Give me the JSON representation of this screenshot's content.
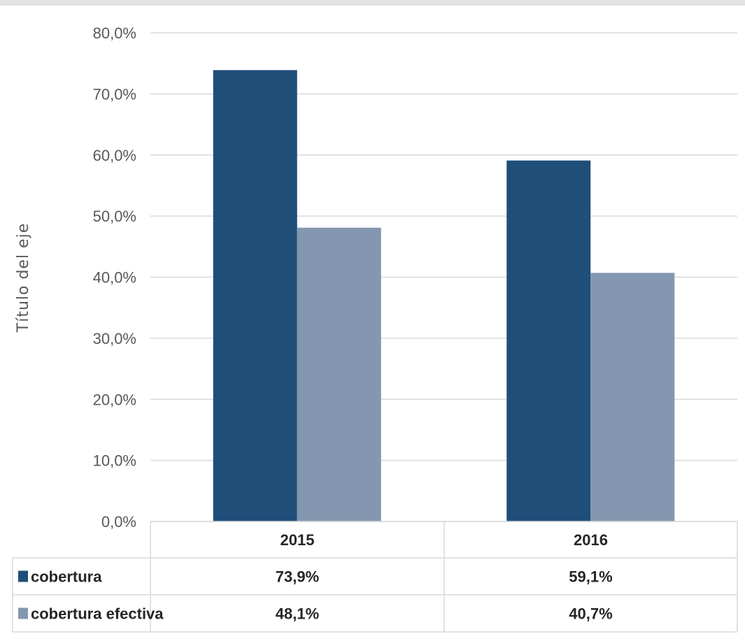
{
  "chart_data": {
    "type": "bar",
    "categories": [
      "2015",
      "2016"
    ],
    "series": [
      {
        "name": "cobertura",
        "values": [
          73.9,
          59.1
        ],
        "labels": [
          "73,9%",
          "59,1%"
        ],
        "color": "#1f4e79"
      },
      {
        "name": "cobertura efectiva",
        "values": [
          48.1,
          40.7
        ],
        "labels": [
          "48,1%",
          "40,7%"
        ],
        "color": "#8497b0"
      }
    ],
    "ylabel": "Título del eje",
    "xlabel": "",
    "ylim": [
      0,
      80
    ],
    "yticks": [
      0,
      10,
      20,
      30,
      40,
      50,
      60,
      70,
      80
    ],
    "ytick_labels": [
      "0,0%",
      "10,0%",
      "20,0%",
      "30,0%",
      "40,0%",
      "50,0%",
      "60,0%",
      "70,0%",
      "80,0%"
    ],
    "grid": true,
    "legend": "data-table",
    "gridline_color": "#d9d9d9"
  }
}
